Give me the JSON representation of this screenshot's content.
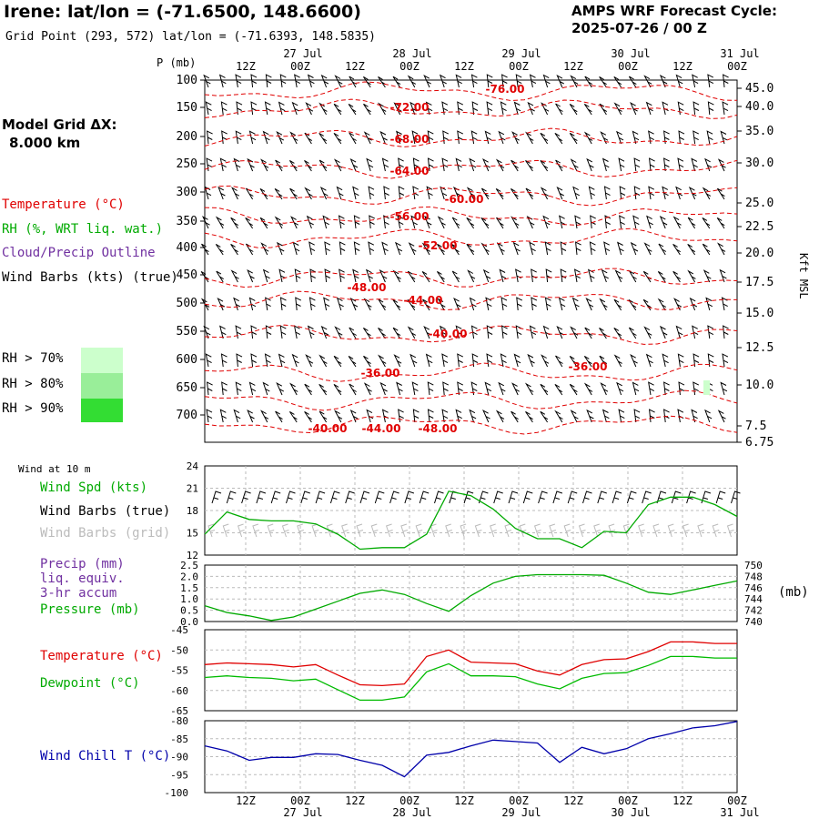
{
  "header": {
    "station_title": "Irene:  lat/lon = (-71.6500, 148.6600)",
    "grid_point": "Grid Point (293, 572) lat/lon = (-71.6393, 148.5835)",
    "product_line1": "AMPS WRF Forecast Cycle:",
    "product_line2": "2025-07-26 / 00  Z"
  },
  "legend": {
    "model_grid_line1": "Model Grid ΔX:",
    "model_grid_line2": "8.000 km",
    "temperature": "Temperature (°C)",
    "rh": "RH (%, WRT liq. wat.)",
    "cloud": "Cloud/Precip Outline",
    "wind_barbs": "Wind Barbs (kts) (true)",
    "rh70": "RH > 70%",
    "rh80": "RH > 80%",
    "rh90": "RH > 90%",
    "colors": {
      "rh70": "#ccffcc",
      "rh80": "#99ee99",
      "rh90": "#33dd33"
    }
  },
  "time_axis": {
    "hour_labels": [
      "12Z",
      "00Z",
      "12Z",
      "00Z",
      "12Z",
      "00Z",
      "12Z",
      "00Z",
      "12Z",
      "00Z"
    ],
    "date_labels": [
      "27 Jul",
      "28 Jul",
      "29 Jul",
      "30 Jul",
      "31 Jul"
    ]
  },
  "chart_data": [
    {
      "type": "line",
      "panel": "upper-air cross section",
      "ylabel": "P (mb)",
      "right_label": "Kft MSL",
      "pressure_ticks": [
        "100",
        "150",
        "200",
        "250",
        "300",
        "350",
        "400",
        "450",
        "500",
        "550",
        "600",
        "650",
        "700"
      ],
      "height_ticks": [
        "45.0",
        "40.0",
        "35.0",
        "30.0",
        "25.0",
        "22.5",
        "20.0",
        "17.5",
        "15.0",
        "12.5",
        "10.0",
        "7.5",
        "6.75"
      ],
      "contour_labels": [
        "-76.00",
        "-72.00",
        "-68.00",
        "-64.00",
        "-60.00",
        "-56.00",
        "-52.00",
        "-48.00",
        "-44.00",
        "-40.00",
        "-36.00",
        "-36.00",
        "-40.00",
        "-44.00",
        "-48.00"
      ],
      "series": [
        {
          "name": "Temperature (°C)",
          "color": "#e00000"
        },
        {
          "name": "Wind Barbs (kts) (true)",
          "color": "#000000"
        }
      ]
    },
    {
      "type": "line",
      "panel": "Wind at 10 m",
      "yticks": [
        "24",
        "21",
        "18",
        "15",
        "12"
      ],
      "ylim": [
        12,
        24
      ],
      "series": [
        {
          "name": "Wind Spd (kts)",
          "color": "#00aa00",
          "values": [
            14.8,
            17.8,
            16.8,
            16.6,
            16.6,
            16.2,
            14.8,
            12.8,
            13.0,
            13.0,
            14.8,
            20.6,
            20.0,
            18.2,
            15.6,
            14.2,
            14.2,
            13.0,
            15.2,
            15.0,
            18.8,
            19.8,
            19.8,
            18.8,
            17.2
          ]
        }
      ],
      "labels": {
        "title": "Wind at 10 m",
        "wind_spd": "Wind Spd (kts)",
        "barbs_true": "Wind Barbs (true)",
        "barbs_grid": "Wind Barbs (grid)"
      }
    },
    {
      "type": "line",
      "panel": "Precip / Pressure",
      "left_ticks": [
        "2.5",
        "2.0",
        "1.5",
        "1.0",
        "0.5",
        "0.0"
      ],
      "right_ticks": [
        "750",
        "748",
        "746",
        "744",
        "742",
        "740"
      ],
      "right_unit": "(mb)",
      "ylim_precip": [
        0,
        2.5
      ],
      "ylim_pressure": [
        740,
        750
      ],
      "series": [
        {
          "name": "Pressure (mb)",
          "color": "#00aa00",
          "values": [
            742.8,
            741.6,
            741.0,
            740.2,
            740.8,
            742.2,
            743.6,
            745.0,
            745.6,
            744.8,
            743.2,
            741.8,
            744.6,
            746.8,
            748.0,
            748.3,
            748.3,
            748.3,
            748.2,
            746.8,
            745.2,
            744.8,
            745.6,
            746.4,
            747.2
          ]
        }
      ],
      "labels": {
        "precip": "Precip (mm)",
        "liq": "liq. equiv.",
        "accum": "3-hr accum",
        "pressure": "Pressure (mb)"
      }
    },
    {
      "type": "line",
      "panel": "Temperature / Dewpoint",
      "yticks": [
        "-45",
        "-50",
        "-55",
        "-60",
        "-65"
      ],
      "ylim": [
        -65,
        -45
      ],
      "series": [
        {
          "name": "Temperature (°C)",
          "color": "#e00000",
          "values": [
            -53.6,
            -53.2,
            -53.4,
            -53.6,
            -54.2,
            -53.6,
            -56.2,
            -58.6,
            -58.8,
            -58.4,
            -51.6,
            -50.0,
            -53.0,
            -53.2,
            -53.4,
            -55.2,
            -56.2,
            -53.6,
            -52.4,
            -52.2,
            -50.4,
            -48.0,
            -48.0,
            -48.4,
            -48.4
          ]
        },
        {
          "name": "Dewpoint (°C)",
          "color": "#00bb00",
          "values": [
            -56.8,
            -56.4,
            -56.8,
            -57.0,
            -57.6,
            -57.2,
            -59.8,
            -62.4,
            -62.4,
            -61.6,
            -55.4,
            -53.4,
            -56.4,
            -56.4,
            -56.6,
            -58.4,
            -59.6,
            -57.0,
            -55.8,
            -55.6,
            -53.8,
            -51.6,
            -51.6,
            -52.0,
            -52.0
          ]
        }
      ],
      "labels": {
        "temperature": "Temperature (°C)",
        "dewpoint": "Dewpoint (°C)"
      }
    },
    {
      "type": "line",
      "panel": "Wind Chill",
      "yticks": [
        "-80",
        "-85",
        "-90",
        "-95",
        "-100"
      ],
      "ylim": [
        -100,
        -80
      ],
      "series": [
        {
          "name": "Wind Chill T (°C)",
          "color": "#0000aa",
          "values": [
            -87.0,
            -88.4,
            -91.0,
            -90.2,
            -90.2,
            -89.2,
            -89.4,
            -91.0,
            -92.4,
            -95.6,
            -89.6,
            -88.8,
            -87.0,
            -85.4,
            -85.8,
            -86.2,
            -91.6,
            -87.4,
            -89.2,
            -87.8,
            -85.0,
            -83.6,
            -82.0,
            -81.4,
            -80.2
          ]
        }
      ],
      "labels": {
        "windchill": "Wind Chill T (°C)"
      }
    }
  ]
}
